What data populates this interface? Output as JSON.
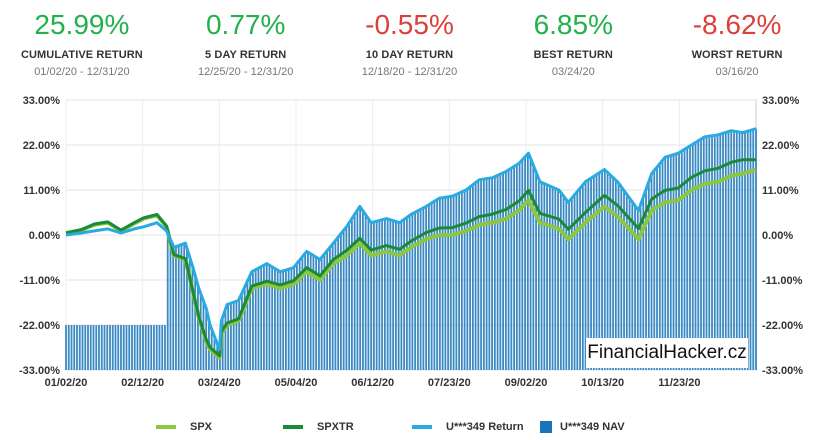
{
  "stats": [
    {
      "value": "25.99%",
      "label": "CUMULATIVE RETURN",
      "period": "01/02/20 - 12/31/20",
      "color": "#22b14c"
    },
    {
      "value": "0.77%",
      "label": "5 DAY RETURN",
      "period": "12/25/20 - 12/31/20",
      "color": "#22b14c"
    },
    {
      "value": "-0.55%",
      "label": "10 DAY RETURN",
      "period": "12/18/20 - 12/31/20",
      "color": "#d9413a"
    },
    {
      "value": "6.85%",
      "label": "BEST RETURN",
      "period": "03/24/20",
      "color": "#22b14c"
    },
    {
      "value": "-8.62%",
      "label": "WORST RETURN",
      "period": "03/16/20",
      "color": "#d9413a"
    }
  ],
  "watermark": "FinancialHacker.cz",
  "chart_data": {
    "type": "line",
    "x_ticks": [
      "01/02/20",
      "02/12/20",
      "03/24/20",
      "05/04/20",
      "06/12/20",
      "07/23/20",
      "09/02/20",
      "10/13/20",
      "11/23/20"
    ],
    "y_ticks": [
      "33.00%",
      "22.00%",
      "11.00%",
      "0.00%",
      "-11.00%",
      "-22.00%",
      "-33.00%"
    ],
    "ylim": [
      -33,
      33
    ],
    "x_range": [
      "2020-01-02",
      "2020-12-31"
    ],
    "grid": true,
    "legend_position": "bottom",
    "series": [
      {
        "name": "SPX",
        "kind": "line",
        "color": "#8dc63f",
        "points": [
          [
            "2020-01-02",
            0.5
          ],
          [
            "2020-01-10",
            1.2
          ],
          [
            "2020-01-17",
            2.5
          ],
          [
            "2020-01-24",
            3.0
          ],
          [
            "2020-01-31",
            1.0
          ],
          [
            "2020-02-07",
            2.8
          ],
          [
            "2020-02-12",
            4.0
          ],
          [
            "2020-02-19",
            4.8
          ],
          [
            "2020-02-24",
            2.0
          ],
          [
            "2020-02-28",
            -5.0
          ],
          [
            "2020-03-05",
            -6.0
          ],
          [
            "2020-03-09",
            -14.0
          ],
          [
            "2020-03-12",
            -20.0
          ],
          [
            "2020-03-16",
            -26.0
          ],
          [
            "2020-03-18",
            -28.0
          ],
          [
            "2020-03-23",
            -30.0
          ],
          [
            "2020-03-24",
            -24.0
          ],
          [
            "2020-03-27",
            -22.0
          ],
          [
            "2020-04-02",
            -21.0
          ],
          [
            "2020-04-09",
            -13.0
          ],
          [
            "2020-04-17",
            -12.0
          ],
          [
            "2020-04-24",
            -13.0
          ],
          [
            "2020-05-01",
            -12.0
          ],
          [
            "2020-05-08",
            -9.0
          ],
          [
            "2020-05-15",
            -11.0
          ],
          [
            "2020-05-22",
            -7.0
          ],
          [
            "2020-05-29",
            -5.0
          ],
          [
            "2020-06-05",
            -2.0
          ],
          [
            "2020-06-11",
            -5.0
          ],
          [
            "2020-06-19",
            -4.0
          ],
          [
            "2020-06-26",
            -5.0
          ],
          [
            "2020-07-02",
            -3.0
          ],
          [
            "2020-07-10",
            -1.0
          ],
          [
            "2020-07-17",
            0.0
          ],
          [
            "2020-07-24",
            0.0
          ],
          [
            "2020-07-31",
            1.0
          ],
          [
            "2020-08-07",
            2.5
          ],
          [
            "2020-08-14",
            3.0
          ],
          [
            "2020-08-21",
            4.0
          ],
          [
            "2020-08-28",
            6.0
          ],
          [
            "2020-09-02",
            8.5
          ],
          [
            "2020-09-08",
            3.0
          ],
          [
            "2020-09-18",
            1.5
          ],
          [
            "2020-09-23",
            -1.0
          ],
          [
            "2020-10-02",
            3.0
          ],
          [
            "2020-10-12",
            7.0
          ],
          [
            "2020-10-19",
            4.5
          ],
          [
            "2020-10-30",
            -1.0
          ],
          [
            "2020-11-06",
            6.0
          ],
          [
            "2020-11-13",
            8.0
          ],
          [
            "2020-11-20",
            8.5
          ],
          [
            "2020-11-27",
            11.0
          ],
          [
            "2020-12-04",
            12.5
          ],
          [
            "2020-12-11",
            13.0
          ],
          [
            "2020-12-18",
            14.5
          ],
          [
            "2020-12-24",
            15.0
          ],
          [
            "2020-12-31",
            16.0
          ]
        ]
      },
      {
        "name": "SPXTR",
        "kind": "line",
        "color": "#1a8a3a",
        "points": [
          [
            "2020-01-02",
            0.5
          ],
          [
            "2020-01-10",
            1.3
          ],
          [
            "2020-01-17",
            2.7
          ],
          [
            "2020-01-24",
            3.2
          ],
          [
            "2020-01-31",
            1.2
          ],
          [
            "2020-02-07",
            3.0
          ],
          [
            "2020-02-12",
            4.2
          ],
          [
            "2020-02-19",
            5.0
          ],
          [
            "2020-02-24",
            2.2
          ],
          [
            "2020-02-28",
            -4.8
          ],
          [
            "2020-03-05",
            -5.8
          ],
          [
            "2020-03-09",
            -13.8
          ],
          [
            "2020-03-12",
            -19.8
          ],
          [
            "2020-03-16",
            -25.6
          ],
          [
            "2020-03-18",
            -27.5
          ],
          [
            "2020-03-23",
            -29.5
          ],
          [
            "2020-03-24",
            -23.6
          ],
          [
            "2020-03-27",
            -21.5
          ],
          [
            "2020-04-02",
            -20.5
          ],
          [
            "2020-04-09",
            -12.5
          ],
          [
            "2020-04-17",
            -11.3
          ],
          [
            "2020-04-24",
            -12.2
          ],
          [
            "2020-05-01",
            -11.2
          ],
          [
            "2020-05-08",
            -8.0
          ],
          [
            "2020-05-15",
            -10.0
          ],
          [
            "2020-05-22",
            -6.0
          ],
          [
            "2020-05-29",
            -3.8
          ],
          [
            "2020-06-05",
            -0.8
          ],
          [
            "2020-06-11",
            -3.7
          ],
          [
            "2020-06-19",
            -2.6
          ],
          [
            "2020-06-26",
            -3.5
          ],
          [
            "2020-07-02",
            -1.5
          ],
          [
            "2020-07-10",
            0.6
          ],
          [
            "2020-07-17",
            1.7
          ],
          [
            "2020-07-24",
            1.8
          ],
          [
            "2020-07-31",
            2.9
          ],
          [
            "2020-08-07",
            4.5
          ],
          [
            "2020-08-14",
            5.1
          ],
          [
            "2020-08-21",
            6.2
          ],
          [
            "2020-08-28",
            8.3
          ],
          [
            "2020-09-02",
            10.9
          ],
          [
            "2020-09-08",
            5.3
          ],
          [
            "2020-09-18",
            3.9
          ],
          [
            "2020-09-23",
            1.4
          ],
          [
            "2020-10-02",
            5.5
          ],
          [
            "2020-10-12",
            9.7
          ],
          [
            "2020-10-19",
            7.2
          ],
          [
            "2020-10-30",
            1.6
          ],
          [
            "2020-11-06",
            8.8
          ],
          [
            "2020-11-13",
            10.9
          ],
          [
            "2020-11-20",
            11.5
          ],
          [
            "2020-11-27",
            14.1
          ],
          [
            "2020-12-04",
            15.7
          ],
          [
            "2020-12-11",
            16.3
          ],
          [
            "2020-12-18",
            17.8
          ],
          [
            "2020-12-24",
            18.4
          ],
          [
            "2020-12-31",
            18.4
          ]
        ]
      },
      {
        "name": "U***349 Return",
        "kind": "line",
        "color": "#29abe2",
        "points": [
          [
            "2020-01-02",
            0.0
          ],
          [
            "2020-01-10",
            0.5
          ],
          [
            "2020-01-17",
            1.0
          ],
          [
            "2020-01-24",
            1.5
          ],
          [
            "2020-01-31",
            0.5
          ],
          [
            "2020-02-07",
            1.5
          ],
          [
            "2020-02-12",
            2.0
          ],
          [
            "2020-02-19",
            3.0
          ],
          [
            "2020-02-24",
            1.0
          ],
          [
            "2020-02-28",
            -3.0
          ],
          [
            "2020-03-05",
            -2.0
          ],
          [
            "2020-03-09",
            -8.0
          ],
          [
            "2020-03-12",
            -13.0
          ],
          [
            "2020-03-16",
            -18.0
          ],
          [
            "2020-03-18",
            -22.0
          ],
          [
            "2020-03-23",
            -28.0
          ],
          [
            "2020-03-24",
            -21.0
          ],
          [
            "2020-03-27",
            -17.0
          ],
          [
            "2020-04-02",
            -16.0
          ],
          [
            "2020-04-09",
            -9.0
          ],
          [
            "2020-04-17",
            -7.0
          ],
          [
            "2020-04-24",
            -9.0
          ],
          [
            "2020-05-01",
            -8.0
          ],
          [
            "2020-05-08",
            -4.0
          ],
          [
            "2020-05-15",
            -6.0
          ],
          [
            "2020-05-22",
            -2.0
          ],
          [
            "2020-05-29",
            2.0
          ],
          [
            "2020-06-05",
            7.0
          ],
          [
            "2020-06-11",
            3.0
          ],
          [
            "2020-06-19",
            4.0
          ],
          [
            "2020-06-26",
            3.0
          ],
          [
            "2020-07-02",
            5.0
          ],
          [
            "2020-07-10",
            7.0
          ],
          [
            "2020-07-17",
            9.0
          ],
          [
            "2020-07-24",
            9.5
          ],
          [
            "2020-07-31",
            11.0
          ],
          [
            "2020-08-07",
            13.5
          ],
          [
            "2020-08-14",
            14.0
          ],
          [
            "2020-08-21",
            15.5
          ],
          [
            "2020-08-28",
            17.5
          ],
          [
            "2020-09-02",
            20.0
          ],
          [
            "2020-09-08",
            13.0
          ],
          [
            "2020-09-18",
            11.0
          ],
          [
            "2020-09-23",
            8.0
          ],
          [
            "2020-10-02",
            13.0
          ],
          [
            "2020-10-12",
            16.0
          ],
          [
            "2020-10-19",
            13.0
          ],
          [
            "2020-10-30",
            6.0
          ],
          [
            "2020-11-06",
            15.0
          ],
          [
            "2020-11-13",
            19.0
          ],
          [
            "2020-11-20",
            20.0
          ],
          [
            "2020-11-27",
            22.0
          ],
          [
            "2020-12-04",
            24.0
          ],
          [
            "2020-12-11",
            24.5
          ],
          [
            "2020-12-18",
            25.5
          ],
          [
            "2020-12-24",
            25.0
          ],
          [
            "2020-12-31",
            25.99
          ]
        ]
      },
      {
        "name": "U***349 NAV",
        "kind": "bar",
        "color": "#1a75b8"
      }
    ]
  }
}
